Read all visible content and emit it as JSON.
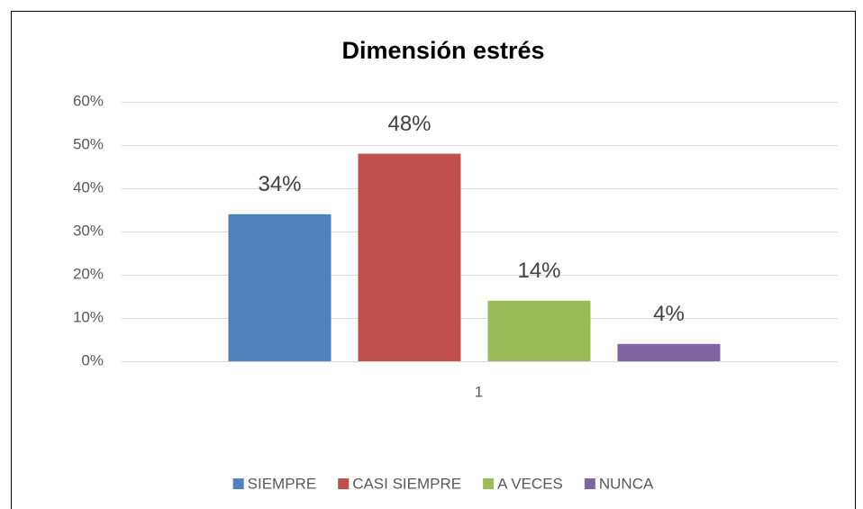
{
  "chart_data": {
    "type": "bar",
    "title": "Dimensión estrés",
    "categories": [
      "1"
    ],
    "series": [
      {
        "name": "SIEMPRE",
        "color": "#4f81bd",
        "values": [
          34
        ],
        "value_labels": [
          "34%"
        ]
      },
      {
        "name": "CASI SIEMPRE",
        "color": "#c0504d",
        "values": [
          48
        ],
        "value_labels": [
          "48%"
        ]
      },
      {
        "name": "A VECES",
        "color": "#9bbb59",
        "values": [
          14
        ],
        "value_labels": [
          "14%"
        ]
      },
      {
        "name": "NUNCA",
        "color": "#8064a2",
        "values": [
          4
        ],
        "value_labels": [
          "4%"
        ]
      }
    ],
    "ylim": [
      0,
      60
    ],
    "yticks": [
      {
        "value": 0,
        "label": "0%"
      },
      {
        "value": 10,
        "label": "10%"
      },
      {
        "value": 20,
        "label": "20%"
      },
      {
        "value": 30,
        "label": "30%"
      },
      {
        "value": 40,
        "label": "40%"
      },
      {
        "value": 50,
        "label": "50%"
      },
      {
        "value": 60,
        "label": "60%"
      }
    ],
    "grid": true,
    "legend": "bottom"
  }
}
